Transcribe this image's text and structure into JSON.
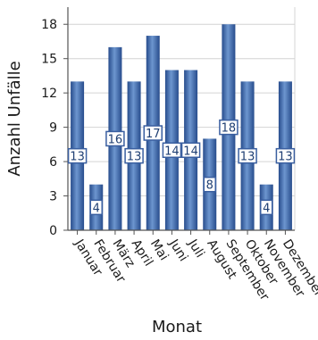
{
  "chart_data": {
    "type": "bar",
    "title": "",
    "xlabel": "Monat",
    "ylabel": "Anzahl Unfälle",
    "categories": [
      "Januar",
      "Februar",
      "März",
      "April",
      "Mai",
      "Juni",
      "Juli",
      "August",
      "September",
      "Oktober",
      "November",
      "Dezember"
    ],
    "values": [
      13,
      4,
      16,
      13,
      17,
      14,
      14,
      8,
      18,
      13,
      4,
      13
    ],
    "yticks": [
      0,
      3,
      6,
      9,
      12,
      15,
      18
    ],
    "ylim": [
      0,
      19.5
    ],
    "grid": true,
    "colors": {
      "bar_dark": "#274c8c",
      "bar_mid": "#3f6fb4",
      "bar_light": "#6d96cf",
      "grid": "#d4d4d4",
      "axis": "#555555",
      "label_border": "#3a5fa0"
    }
  }
}
